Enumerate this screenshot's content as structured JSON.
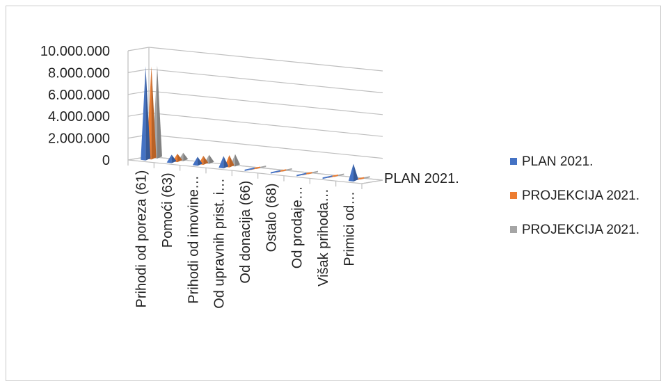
{
  "chart_data": {
    "type": "bar",
    "style": "3d-cone",
    "title": "",
    "xlabel": "",
    "ylabel": "",
    "ylim": [
      0,
      10000000
    ],
    "yticks": [
      "0",
      "2.000.000",
      "4.000.000",
      "6.000.000",
      "8.000.000",
      "10.000.000"
    ],
    "grid": true,
    "legend_position": "right",
    "depth_label": "PLAN 2021.",
    "categories": [
      "Prihodi od poreza (61)",
      "Pomoći (63)",
      "Prihodi od imovine…",
      "Od upravnih prist. i…",
      "Od donacija (66)",
      "Ostalo (68)",
      "Od prodaje…",
      "Višak prihoda…",
      "Primici od…"
    ],
    "series": [
      {
        "name": "PLAN 2021.",
        "color": "#4472C4",
        "values": [
          8500000,
          650000,
          700000,
          1000000,
          0,
          0,
          0,
          0,
          1500000
        ]
      },
      {
        "name": "PROJEKCIJA 2021.",
        "color": "#ED7D31",
        "values": [
          8400000,
          650000,
          700000,
          1000000,
          0,
          0,
          0,
          0,
          0
        ]
      },
      {
        "name": "PROJEKCIJA 2021.",
        "color": "#A5A5A5",
        "values": [
          8400000,
          650000,
          700000,
          1000000,
          0,
          0,
          0,
          0,
          0
        ]
      }
    ]
  }
}
